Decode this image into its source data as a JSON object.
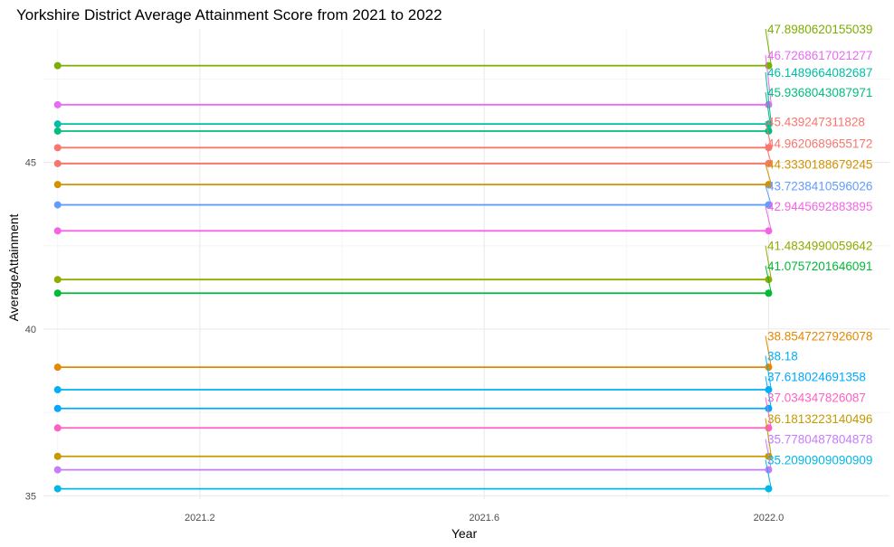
{
  "chart_data": {
    "type": "line",
    "title": "Yorkshire District Average Attainment Score from 2021 to 2022",
    "xlabel": "Year",
    "ylabel": "AverageAttainment",
    "x": [
      2021,
      2022
    ],
    "xlim": [
      2020.98,
      2022.17
    ],
    "ylim": [
      34.9,
      49.0
    ],
    "x_ticks": [
      2021.2,
      2021.6,
      2022.0
    ],
    "x_tick_labels": [
      "2021.2",
      "2021.6",
      "2022.0"
    ],
    "y_ticks": [
      35,
      40,
      45
    ],
    "y_tick_labels": [
      "35",
      "40",
      "45"
    ],
    "grid": true,
    "legend": "none",
    "series": [
      {
        "label": "47.8980620155039",
        "value": 47.8980620155039,
        "label_y": 49.0,
        "color": "#7CAE00"
      },
      {
        "label": "46.7268617021277",
        "value": 46.7268617021277,
        "label_y": 48.22,
        "color": "#E76BF3"
      },
      {
        "label": "46.1489664082687",
        "value": 46.1489664082687,
        "label_y": 47.7,
        "color": "#00BFA5"
      },
      {
        "label": "45.9368043087971",
        "value": 45.9368043087971,
        "label_y": 47.1,
        "color": "#00BE7D"
      },
      {
        "label": "45.439247311828",
        "value": 45.439247311828,
        "label_y": 46.22,
        "color": "#F8766D"
      },
      {
        "label": "44.9620689655172",
        "value": 44.9620689655172,
        "label_y": 45.57,
        "color": "#F8766D"
      },
      {
        "label": "44.3330188679245",
        "value": 44.3330188679245,
        "label_y": 44.95,
        "color": "#D39200"
      },
      {
        "label": "43.7238410596026",
        "value": 43.7238410596026,
        "label_y": 44.3,
        "color": "#619CFF"
      },
      {
        "label": "42.9445692883895",
        "value": 42.9445692883895,
        "label_y": 43.68,
        "color": "#F564E3"
      },
      {
        "label": "41.4834990059642",
        "value": 41.4834990059642,
        "label_y": 42.5,
        "color": "#93AA00"
      },
      {
        "label": "41.0757201646091",
        "value": 41.0757201646091,
        "label_y": 41.9,
        "color": "#00BA38"
      },
      {
        "label": "38.8547227926078",
        "value": 38.8547227926078,
        "label_y": 39.8,
        "color": "#E58700"
      },
      {
        "label": "38.18",
        "value": 38.18,
        "label_y": 39.2,
        "color": "#00B0F6"
      },
      {
        "label": "37.618024691358",
        "value": 37.618024691358,
        "label_y": 38.58,
        "color": "#00A9FF"
      },
      {
        "label": "37.034347826087",
        "value": 37.034347826087,
        "label_y": 37.95,
        "color": "#FF61C3"
      },
      {
        "label": "36.1813223140496",
        "value": 36.1813223140496,
        "label_y": 37.32,
        "color": "#C49A00"
      },
      {
        "label": "35.7780487804878",
        "value": 35.7780487804878,
        "label_y": 36.7,
        "color": "#C77CFF"
      },
      {
        "label": "35.2090909090909",
        "value": 35.2090909090909,
        "label_y": 36.08,
        "color": "#00B8E7"
      }
    ]
  }
}
